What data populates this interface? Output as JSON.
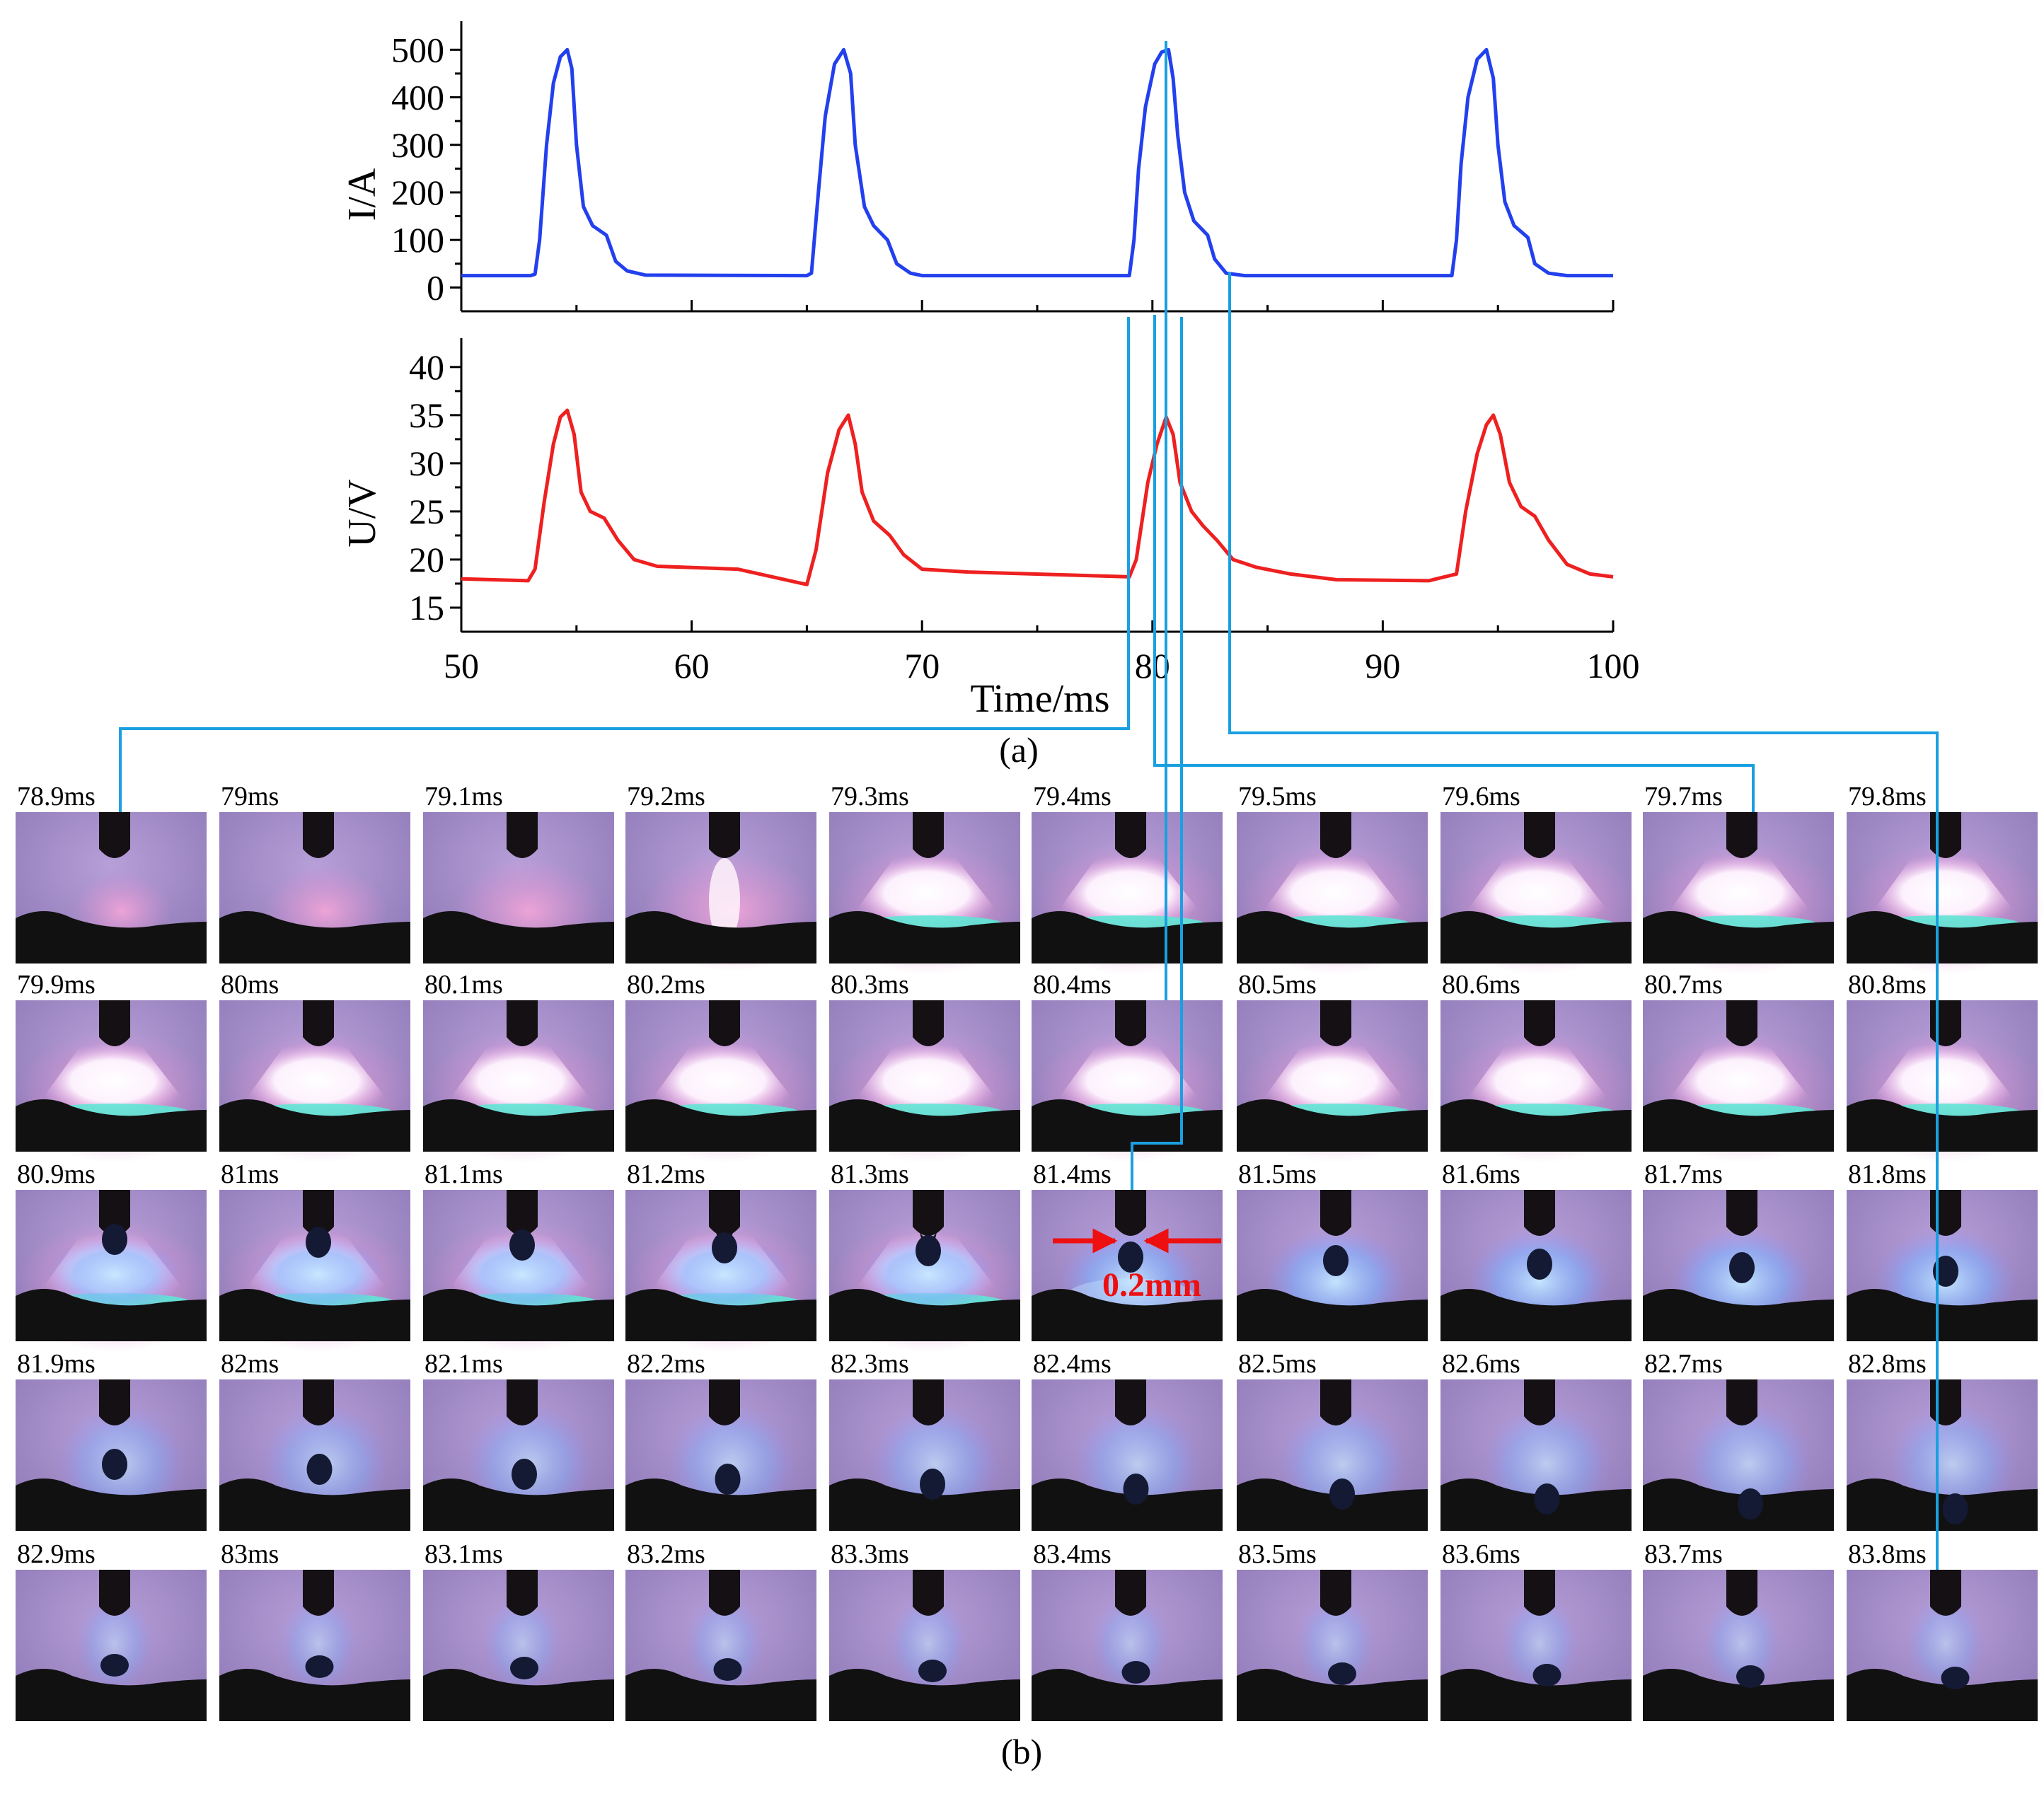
{
  "figure": {
    "panel_a_label": "(a)",
    "panel_b_label": "(b)"
  },
  "colors": {
    "current": "#2340ee",
    "voltage": "#ee2020",
    "connector": "#1aa0e0",
    "annotation": "#ee1010"
  },
  "chart_data": [
    {
      "type": "line",
      "name": "current",
      "xlabel": "",
      "ylabel": "I/A",
      "xlim": [
        50,
        100
      ],
      "ylim": [
        -50,
        560
      ],
      "yticks": [
        0,
        100,
        200,
        300,
        400,
        500
      ],
      "xticks": [
        50,
        60,
        70,
        80,
        90,
        100
      ],
      "minor_xticks": [
        55,
        65,
        75,
        85,
        95
      ],
      "grid": false,
      "series": [
        {
          "name": "I",
          "points": [
            [
              50,
              25
            ],
            [
              53,
              25
            ],
            [
              53.2,
              28
            ],
            [
              53.4,
              100
            ],
            [
              53.7,
              300
            ],
            [
              54,
              430
            ],
            [
              54.3,
              485
            ],
            [
              54.6,
              500
            ],
            [
              54.8,
              460
            ],
            [
              55,
              300
            ],
            [
              55.3,
              170
            ],
            [
              55.7,
              130
            ],
            [
              56.3,
              110
            ],
            [
              56.7,
              55
            ],
            [
              57.2,
              35
            ],
            [
              58,
              26
            ],
            [
              65,
              25
            ],
            [
              65.2,
              30
            ],
            [
              65.5,
              200
            ],
            [
              65.8,
              360
            ],
            [
              66.2,
              470
            ],
            [
              66.6,
              500
            ],
            [
              66.9,
              450
            ],
            [
              67.1,
              300
            ],
            [
              67.5,
              170
            ],
            [
              67.9,
              130
            ],
            [
              68.5,
              100
            ],
            [
              68.9,
              50
            ],
            [
              69.5,
              30
            ],
            [
              70,
              25
            ],
            [
              79,
              25
            ],
            [
              79.2,
              100
            ],
            [
              79.4,
              250
            ],
            [
              79.7,
              380
            ],
            [
              80.1,
              470
            ],
            [
              80.4,
              495
            ],
            [
              80.7,
              500
            ],
            [
              80.9,
              440
            ],
            [
              81.1,
              320
            ],
            [
              81.4,
              200
            ],
            [
              81.8,
              140
            ],
            [
              82.4,
              110
            ],
            [
              82.7,
              60
            ],
            [
              83.2,
              30
            ],
            [
              84,
              25
            ],
            [
              93,
              25
            ],
            [
              93.2,
              100
            ],
            [
              93.4,
              260
            ],
            [
              93.7,
              400
            ],
            [
              94.1,
              480
            ],
            [
              94.5,
              500
            ],
            [
              94.8,
              440
            ],
            [
              95,
              300
            ],
            [
              95.3,
              180
            ],
            [
              95.7,
              130
            ],
            [
              96.3,
              105
            ],
            [
              96.6,
              50
            ],
            [
              97.2,
              30
            ],
            [
              98,
              25
            ],
            [
              100,
              25
            ]
          ]
        }
      ]
    },
    {
      "type": "line",
      "name": "voltage",
      "xlabel": "Time/ms",
      "ylabel": "U/V",
      "xlim": [
        50,
        100
      ],
      "ylim": [
        12.5,
        43
      ],
      "yticks": [
        15,
        20,
        25,
        30,
        35,
        40
      ],
      "xticks": [
        50,
        60,
        70,
        80,
        90,
        100
      ],
      "minor_xticks": [
        55,
        65,
        75,
        85,
        95
      ],
      "tick_labels_x": [
        "50",
        "60",
        "70",
        "80",
        "90",
        "100"
      ],
      "grid": false,
      "series": [
        {
          "name": "U",
          "points": [
            [
              50,
              18
            ],
            [
              52.9,
              17.8
            ],
            [
              53.2,
              19
            ],
            [
              53.6,
              26
            ],
            [
              54,
              32
            ],
            [
              54.3,
              34.8
            ],
            [
              54.6,
              35.5
            ],
            [
              54.9,
              33
            ],
            [
              55.2,
              27
            ],
            [
              55.6,
              25
            ],
            [
              56.2,
              24.3
            ],
            [
              56.8,
              22
            ],
            [
              57.5,
              20
            ],
            [
              58.5,
              19.3
            ],
            [
              62,
              19
            ],
            [
              65,
              17.4
            ],
            [
              65.4,
              21
            ],
            [
              65.9,
              29
            ],
            [
              66.4,
              33.5
            ],
            [
              66.8,
              35
            ],
            [
              67.1,
              32
            ],
            [
              67.4,
              27
            ],
            [
              67.9,
              24
            ],
            [
              68.6,
              22.5
            ],
            [
              69.2,
              20.5
            ],
            [
              70,
              19
            ],
            [
              72,
              18.7
            ],
            [
              79,
              18.2
            ],
            [
              79.3,
              20
            ],
            [
              79.8,
              28
            ],
            [
              80.2,
              32
            ],
            [
              80.6,
              34.8
            ],
            [
              80.9,
              33
            ],
            [
              81.2,
              28
            ],
            [
              81.7,
              25
            ],
            [
              82.2,
              23.5
            ],
            [
              82.8,
              22
            ],
            [
              83.5,
              20
            ],
            [
              84.5,
              19.2
            ],
            [
              86,
              18.5
            ],
            [
              88,
              17.9
            ],
            [
              92,
              17.8
            ],
            [
              93.2,
              18.5
            ],
            [
              93.6,
              25
            ],
            [
              94.1,
              31
            ],
            [
              94.5,
              34
            ],
            [
              94.8,
              35
            ],
            [
              95.1,
              33
            ],
            [
              95.5,
              28
            ],
            [
              96,
              25.5
            ],
            [
              96.6,
              24.5
            ],
            [
              97.2,
              22
            ],
            [
              98,
              19.5
            ],
            [
              99,
              18.5
            ],
            [
              100,
              18.2
            ]
          ]
        }
      ]
    }
  ],
  "frames": {
    "labels": [
      [
        "78.9ms",
        "79ms",
        "79.1ms",
        "79.2ms",
        "79.3ms",
        "79.4ms",
        "79.5ms",
        "79.6ms",
        "79.7ms",
        "79.8ms"
      ],
      [
        "79.9ms",
        "80ms",
        "80.1ms",
        "80.2ms",
        "80.3ms",
        "80.4ms",
        "80.5ms",
        "80.6ms",
        "80.7ms",
        "80.8ms"
      ],
      [
        "80.9ms",
        "81ms",
        "81.1ms",
        "81.2ms",
        "81.3ms",
        "81.4ms",
        "81.5ms",
        "81.6ms",
        "81.7ms",
        "81.8ms"
      ],
      [
        "81.9ms",
        "82ms",
        "82.1ms",
        "82.2ms",
        "82.3ms",
        "82.4ms",
        "82.5ms",
        "82.6ms",
        "82.7ms",
        "82.8ms"
      ],
      [
        "82.9ms",
        "83ms",
        "83.1ms",
        "83.2ms",
        "83.3ms",
        "83.4ms",
        "83.5ms",
        "83.6ms",
        "83.7ms",
        "83.8ms"
      ]
    ],
    "annotation": "0.2mm"
  }
}
